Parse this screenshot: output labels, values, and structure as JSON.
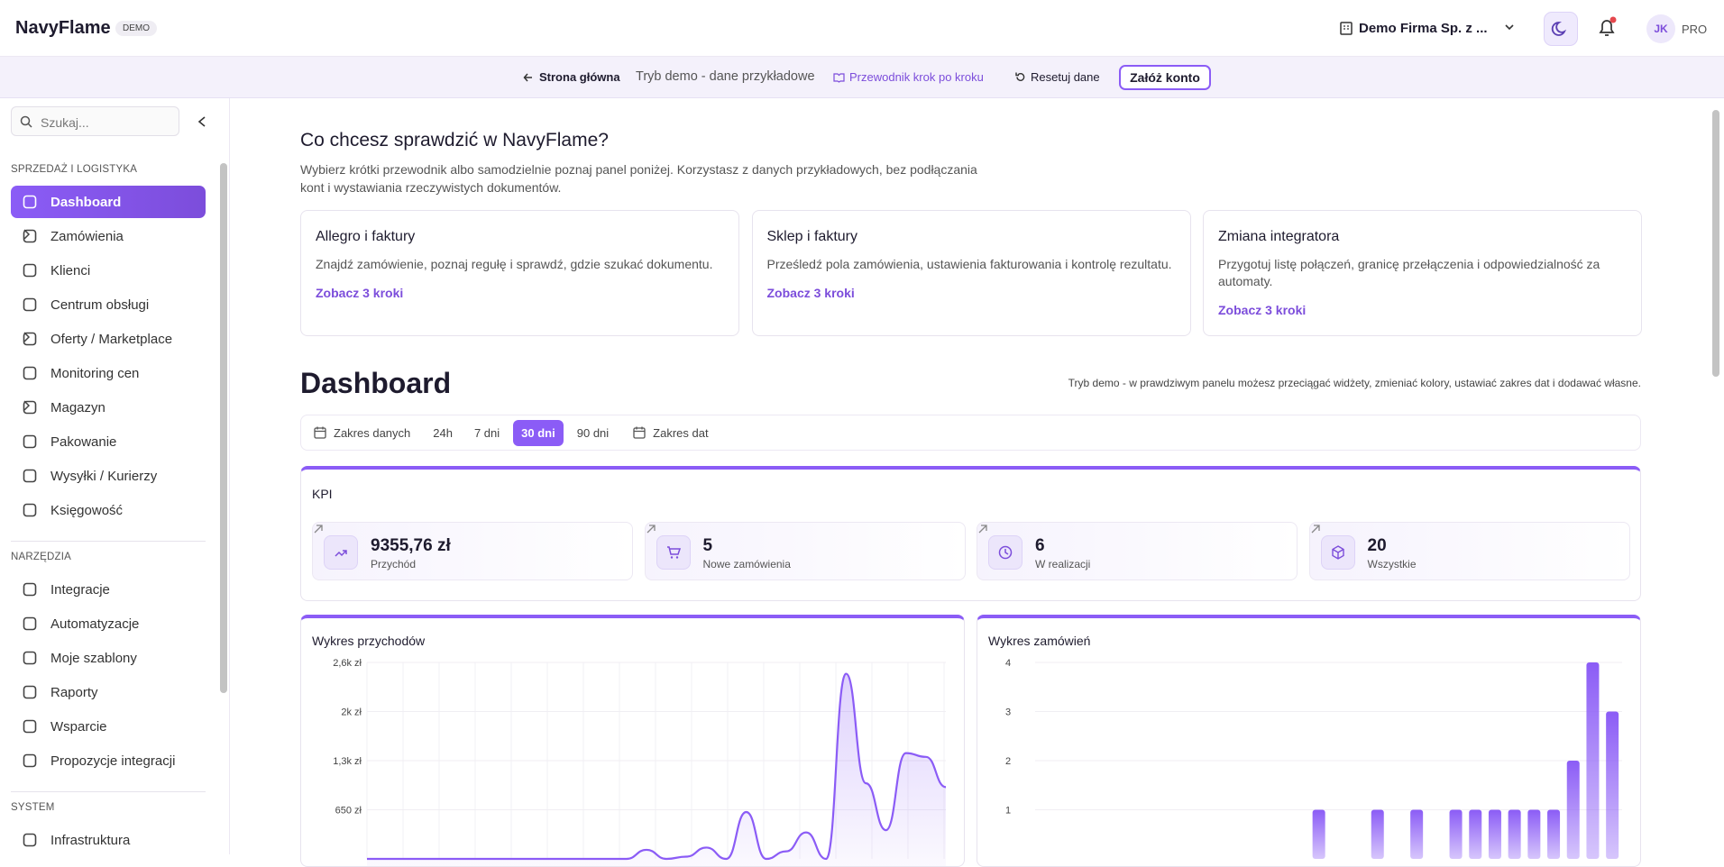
{
  "header": {
    "brand": "NavyFlame",
    "badge": "DEMO",
    "company": "Demo Firma Sp. z ...",
    "avatar": "JK",
    "plan": "PRO"
  },
  "demo_bar": {
    "back": "Strona główna",
    "mode": "Tryb demo - dane przykładowe",
    "guide": "Przewodnik krok po kroku",
    "reset": "Resetuj dane",
    "signup": "Załóż konto"
  },
  "sidebar": {
    "search_placeholder": "Szukaj...",
    "sections": [
      {
        "title": "SPRZEDAŻ I LOGISTYKA",
        "items": [
          {
            "label": "Dashboard",
            "active": true
          },
          {
            "label": "Zamówienia",
            "submenu": true
          },
          {
            "label": "Klienci"
          },
          {
            "label": "Centrum obsługi"
          },
          {
            "label": "Oferty / Marketplace",
            "submenu": true
          },
          {
            "label": "Monitoring cen"
          },
          {
            "label": "Magazyn",
            "submenu": true
          },
          {
            "label": "Pakowanie"
          },
          {
            "label": "Wysyłki / Kurierzy"
          },
          {
            "label": "Księgowość"
          }
        ]
      },
      {
        "title": "NARZĘDZIA",
        "items": [
          {
            "label": "Integracje"
          },
          {
            "label": "Automatyzacje"
          },
          {
            "label": "Moje szablony"
          },
          {
            "label": "Raporty"
          },
          {
            "label": "Wsparcie"
          },
          {
            "label": "Propozycje integracji"
          }
        ]
      },
      {
        "title": "SYSTEM",
        "items": [
          {
            "label": "Infrastruktura"
          }
        ]
      }
    ]
  },
  "intro": {
    "title": "Co chcesz sprawdzić w NavyFlame?",
    "description": "Wybierz krótki przewodnik albo samodzielnie poznaj panel poniżej. Korzystasz z danych przykładowych, bez podłączania kont i wystawiania rzeczywistych dokumentów.",
    "cards": [
      {
        "title": "Allegro i faktury",
        "text": "Znajdź zamówienie, poznaj regułę i sprawdź, gdzie szukać dokumentu.",
        "link": "Zobacz 3 kroki"
      },
      {
        "title": "Sklep i faktury",
        "text": "Prześledź pola zamówienia, ustawienia fakturowania i kontrolę rezultatu.",
        "link": "Zobacz 3 kroki"
      },
      {
        "title": "Zmiana integratora",
        "text": "Przygotuj listę połączeń, granicę przełączenia i odpowiedzialność za automaty.",
        "link": "Zobacz 3 kroki"
      }
    ]
  },
  "dashboard": {
    "title": "Dashboard",
    "note": "Tryb demo - w prawdziwym panelu możesz przeciągać widżety, zmieniać kolory, ustawiać zakres dat i dodawać własne.",
    "filters": {
      "label": "Zakres danych",
      "options": [
        "24h",
        "7 dni",
        "30 dni",
        "90 dni"
      ],
      "active": 2,
      "custom": "Zakres dat"
    },
    "kpi": {
      "title": "KPI",
      "items": [
        {
          "value": "9355,76 zł",
          "label": "Przychód"
        },
        {
          "value": 5,
          "label": "Nowe zamówienia"
        },
        {
          "value": 6,
          "label": "W realizacji"
        },
        {
          "value": 20,
          "label": "Wszystkie"
        }
      ]
    }
  },
  "chart_data": [
    {
      "type": "line",
      "title": "Wykres przychodów",
      "color": "#8b5cf6",
      "ylim": [
        0,
        2600
      ],
      "yticks": [
        {
          "value": 2600,
          "label": "2,6k zł"
        },
        {
          "value": 1950,
          "label": "2k zł"
        },
        {
          "value": 1300,
          "label": "1,3k zł"
        },
        {
          "value": 650,
          "label": "650 zł"
        }
      ],
      "values": [
        0,
        0,
        0,
        0,
        0,
        0,
        0,
        0,
        0,
        0,
        0,
        0,
        0,
        0,
        120,
        0,
        30,
        150,
        0,
        620,
        0,
        100,
        350,
        0,
        2450,
        1000,
        380,
        1400,
        1350,
        950
      ]
    },
    {
      "type": "bar",
      "title": "Wykres zamówień",
      "color": "#8b5cf6",
      "ylim": [
        0,
        4
      ],
      "yticks": [
        4,
        3,
        2,
        1
      ],
      "values": [
        0,
        0,
        0,
        0,
        0,
        0,
        0,
        0,
        0,
        0,
        0,
        0,
        0,
        0,
        1,
        0,
        0,
        1,
        0,
        1,
        0,
        1,
        1,
        1,
        1,
        1,
        1,
        2,
        4,
        3
      ]
    }
  ]
}
